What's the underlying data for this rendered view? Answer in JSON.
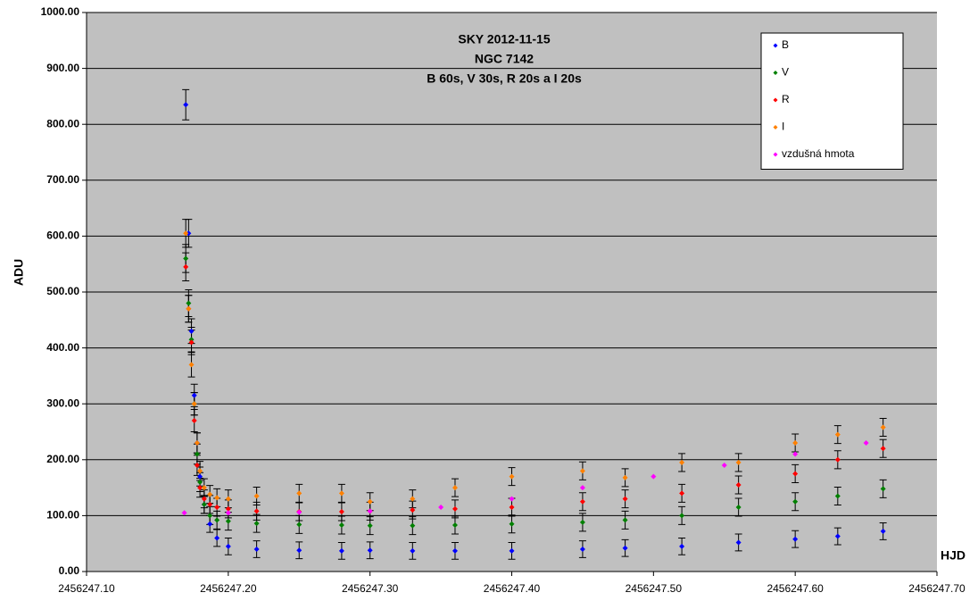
{
  "chart_data": {
    "type": "scatter",
    "title": [
      "SKY 2012-11-15",
      "NGC 7142",
      "B 60s, V 30s, R 20s a I 20s"
    ],
    "xlabel": "HJD",
    "ylabel": "ADU",
    "xlim": [
      2456247.1,
      2456247.7
    ],
    "ylim": [
      0,
      1000
    ],
    "xticks": [
      {
        "value": 2456247.1,
        "label": "2456247.10"
      },
      {
        "value": 2456247.2,
        "label": "2456247.20"
      },
      {
        "value": 2456247.3,
        "label": "2456247.30"
      },
      {
        "value": 2456247.4,
        "label": "2456247.40"
      },
      {
        "value": 2456247.5,
        "label": "2456247.50"
      },
      {
        "value": 2456247.6,
        "label": "2456247.60"
      },
      {
        "value": 2456247.7,
        "label": "2456247.70"
      }
    ],
    "yticks": [
      {
        "value": 0,
        "label": "0.00"
      },
      {
        "value": 100,
        "label": "100.00"
      },
      {
        "value": 200,
        "label": "200.00"
      },
      {
        "value": 300,
        "label": "300.00"
      },
      {
        "value": 400,
        "label": "400.00"
      },
      {
        "value": 500,
        "label": "500.00"
      },
      {
        "value": 600,
        "label": "600.00"
      },
      {
        "value": 700,
        "label": "700.00"
      },
      {
        "value": 800,
        "label": "800.00"
      },
      {
        "value": 900,
        "label": "900.00"
      },
      {
        "value": 1000,
        "label": "1000.00"
      }
    ],
    "grid": true,
    "legend": "top-right",
    "error_color": "#000000",
    "series": [
      {
        "name": "B",
        "color": "#0000ff",
        "x": [
          2456247.17,
          2456247.172,
          2456247.174,
          2456247.176,
          2456247.178,
          2456247.18,
          2456247.183,
          2456247.187,
          2456247.192,
          2456247.2,
          2456247.22,
          2456247.25,
          2456247.28,
          2456247.3,
          2456247.33,
          2456247.36,
          2456247.4,
          2456247.45,
          2456247.48,
          2456247.52,
          2456247.56,
          2456247.6,
          2456247.63,
          2456247.662
        ],
        "values": [
          835,
          605,
          430,
          315,
          230,
          170,
          120,
          85,
          60,
          45,
          40,
          38,
          37,
          38,
          37,
          37,
          37,
          40,
          42,
          45,
          52,
          58,
          63,
          72
        ],
        "errors": [
          27,
          25,
          22,
          20,
          18,
          17,
          16,
          15,
          15,
          15,
          15,
          15,
          15,
          15,
          15,
          15,
          15,
          15,
          15,
          15,
          15,
          15,
          15,
          15
        ]
      },
      {
        "name": "V",
        "color": "#008000",
        "x": [
          2456247.17,
          2456247.172,
          2456247.174,
          2456247.176,
          2456247.178,
          2456247.18,
          2456247.183,
          2456247.187,
          2456247.192,
          2456247.2,
          2456247.22,
          2456247.25,
          2456247.28,
          2456247.3,
          2456247.33,
          2456247.36,
          2456247.4,
          2456247.45,
          2456247.48,
          2456247.52,
          2456247.56,
          2456247.6,
          2456247.63,
          2456247.662
        ],
        "values": [
          560,
          480,
          415,
          300,
          210,
          160,
          120,
          100,
          92,
          90,
          86,
          84,
          83,
          82,
          82,
          83,
          85,
          88,
          92,
          100,
          115,
          125,
          135,
          148
        ],
        "errors": [
          25,
          24,
          22,
          20,
          18,
          17,
          16,
          16,
          16,
          16,
          16,
          16,
          16,
          16,
          16,
          16,
          16,
          16,
          16,
          16,
          16,
          16,
          16,
          16
        ]
      },
      {
        "name": "R",
        "color": "#ff0000",
        "x": [
          2456247.17,
          2456247.172,
          2456247.174,
          2456247.176,
          2456247.178,
          2456247.18,
          2456247.183,
          2456247.187,
          2456247.192,
          2456247.2,
          2456247.22,
          2456247.25,
          2456247.28,
          2456247.3,
          2456247.33,
          2456247.36,
          2456247.4,
          2456247.45,
          2456247.48,
          2456247.52,
          2456247.56,
          2456247.6,
          2456247.63,
          2456247.662
        ],
        "values": [
          545,
          470,
          410,
          270,
          190,
          150,
          130,
          120,
          115,
          112,
          108,
          107,
          107,
          108,
          110,
          112,
          115,
          125,
          130,
          140,
          155,
          175,
          200,
          220
        ],
        "errors": [
          25,
          24,
          22,
          20,
          18,
          17,
          16,
          16,
          16,
          16,
          16,
          16,
          16,
          16,
          16,
          16,
          16,
          16,
          16,
          16,
          16,
          16,
          16,
          16
        ]
      },
      {
        "name": "I",
        "color": "#ff8000",
        "x": [
          2456247.17,
          2456247.172,
          2456247.174,
          2456247.176,
          2456247.178,
          2456247.18,
          2456247.183,
          2456247.187,
          2456247.192,
          2456247.2,
          2456247.22,
          2456247.25,
          2456247.28,
          2456247.3,
          2456247.33,
          2456247.36,
          2456247.4,
          2456247.45,
          2456247.48,
          2456247.52,
          2456247.56,
          2456247.6,
          2456247.63,
          2456247.662
        ],
        "values": [
          605,
          470,
          370,
          300,
          230,
          180,
          150,
          138,
          132,
          130,
          135,
          140,
          140,
          125,
          130,
          150,
          170,
          180,
          168,
          195,
          195,
          230,
          245,
          258
        ],
        "errors": [
          25,
          24,
          22,
          20,
          18,
          17,
          16,
          16,
          16,
          16,
          16,
          16,
          16,
          16,
          16,
          16,
          16,
          16,
          16,
          16,
          16,
          16,
          16,
          16
        ]
      },
      {
        "name": "vzdušná hmota",
        "color": "#ff00ff",
        "x": [
          2456247.169,
          2456247.2,
          2456247.25,
          2456247.3,
          2456247.35,
          2456247.4,
          2456247.45,
          2456247.5,
          2456247.55,
          2456247.6,
          2456247.65
        ],
        "values": [
          105,
          105,
          106,
          108,
          115,
          130,
          150,
          170,
          190,
          210,
          230
        ]
      }
    ]
  }
}
